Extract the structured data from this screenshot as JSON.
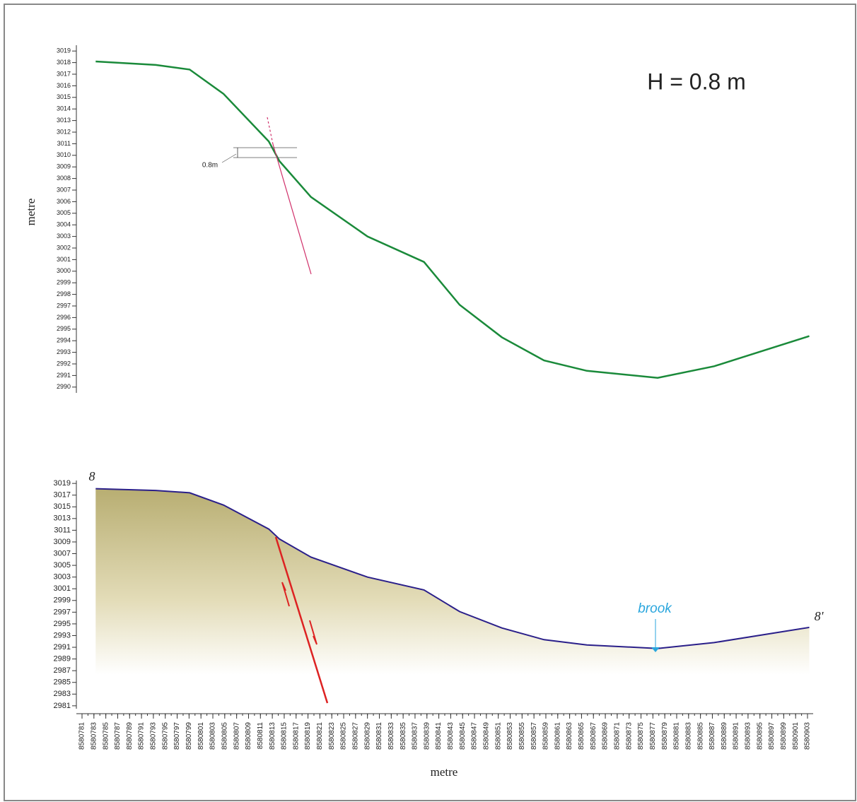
{
  "chart_data": [
    {
      "type": "line",
      "ylabel": "metre",
      "annotation": "H = 0.8 m",
      "offset_label": "0.8m",
      "color": "#1a8a3a",
      "x": [
        8580783.3,
        8580793.4,
        8580799.1,
        8580804.8,
        8580812.4,
        8580814.2,
        8580819.5,
        8580829,
        8580838.5,
        8580844.5,
        8580851.6,
        8580858.7,
        8580865.9,
        8580877.8,
        8580887.3,
        8580903.3
      ],
      "values": [
        3018.1,
        3017.8,
        3017.4,
        3015.3,
        3011.2,
        3009.5,
        3006.4,
        3003.0,
        3000.8,
        2997.1,
        2994.3,
        2992.3,
        2991.4,
        2990.8,
        2991.8,
        2994.4
      ],
      "xlim": [
        8580781,
        8580903
      ],
      "ylim": [
        2989.5,
        3019.5
      ],
      "yticks": [
        2990,
        2991,
        2992,
        2993,
        2994,
        2995,
        2996,
        2997,
        2998,
        2999,
        3000,
        3001,
        3002,
        3003,
        3004,
        3005,
        3006,
        3007,
        3008,
        3009,
        3010,
        3011,
        3012,
        3013,
        3014,
        3015,
        3016,
        3017,
        3018,
        3019
      ]
    },
    {
      "type": "area",
      "xlabel": "metre",
      "start_label": "8",
      "end_label": "8'",
      "brook_label": "brook",
      "out_symbol": "⊙",
      "in_symbol": "⊕",
      "color": "#2a1f8a",
      "x": [
        8580783.3,
        8580793.4,
        8580799.1,
        8580804.8,
        8580812.4,
        8580814.2,
        8580819.5,
        8580829,
        8580838.5,
        8580844.5,
        8580851.6,
        8580858.7,
        8580865.9,
        8580877.8,
        8580887.3,
        8580903.3
      ],
      "values": [
        3018.1,
        3017.8,
        3017.4,
        3015.3,
        3011.2,
        3009.5,
        3006.4,
        3003.0,
        3000.8,
        2997.1,
        2994.3,
        2992.3,
        2991.4,
        2990.8,
        2991.8,
        2994.4
      ],
      "xlim": [
        8580781,
        8580903
      ],
      "ylim": [
        2980.5,
        3019.5
      ],
      "yticks": [
        2981,
        2983,
        2985,
        2987,
        2989,
        2991,
        2993,
        2995,
        2997,
        2999,
        3001,
        3003,
        3005,
        3007,
        3009,
        3011,
        3013,
        3015,
        3017,
        3019
      ],
      "xticks": [
        8580781,
        8580783,
        8580785,
        8580787,
        8580789,
        8580791,
        8580793,
        8580795,
        8580797,
        8580799,
        8580801,
        8580803,
        8580805,
        8580807,
        8580809,
        8580811,
        8580813,
        8580815,
        8580817,
        8580819,
        8580821,
        8580823,
        8580825,
        8580827,
        8580829,
        8580831,
        8580833,
        8580835,
        8580837,
        8580839,
        8580841,
        8580843,
        8580845,
        8580847,
        8580849,
        8580851,
        8580853,
        8580855,
        8580857,
        8580859,
        8580861,
        8580863,
        8580865,
        8580867,
        8580869,
        8580871,
        8580873,
        8580875,
        8580877,
        8580879,
        8580881,
        8580883,
        8580885,
        8580887,
        8580889,
        8580891,
        8580893,
        8580895,
        8580897,
        8580899,
        8580901,
        8580903
      ]
    }
  ]
}
